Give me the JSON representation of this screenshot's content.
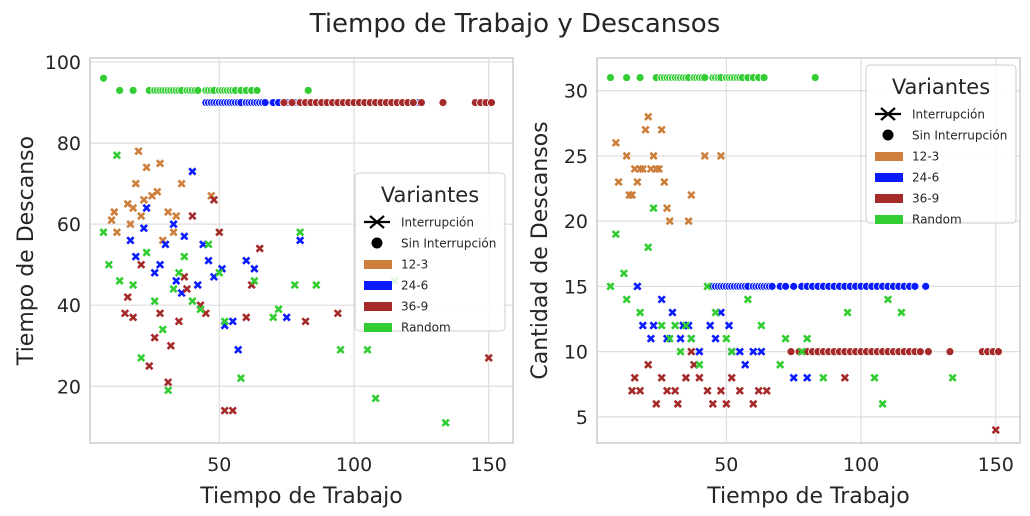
{
  "figure": {
    "suptitle": "Tiempo de Trabajo y Descansos"
  },
  "colors": {
    "12-3": "#cd7f3b",
    "24-6": "#0a1cff",
    "36-9": "#a52a2a",
    "Random": "#32cd32",
    "grid": "#dddddd",
    "spine": "#cccccc"
  },
  "chart_data": [
    {
      "type": "scatter",
      "title": "",
      "xlabel": "Tiempo de Trabajo",
      "ylabel": "Tiempo de Descanso",
      "xlim": [
        2,
        159
      ],
      "ylim": [
        6,
        101
      ],
      "xticks": [
        50,
        100,
        150
      ],
      "yticks": [
        20,
        40,
        60,
        80,
        100
      ],
      "grid": true,
      "legend": {
        "title": "Variantes",
        "placement": "center-right",
        "entries": [
          {
            "label": "Interrupción",
            "kind": "marker",
            "marker": "x"
          },
          {
            "label": "Sin Interrupción",
            "kind": "marker",
            "marker": "o"
          },
          {
            "label": "12-3",
            "kind": "patch",
            "series": "12-3"
          },
          {
            "label": "24-6",
            "kind": "patch",
            "series": "24-6"
          },
          {
            "label": "36-9",
            "kind": "patch",
            "series": "36-9"
          },
          {
            "label": "Random",
            "kind": "patch",
            "series": "Random"
          }
        ]
      },
      "series": [
        {
          "name": "12-3",
          "marker": "x",
          "x": [
            10,
            11,
            12,
            16,
            17,
            18,
            19,
            20,
            21,
            22,
            23,
            25,
            27,
            28,
            29,
            31,
            33,
            34,
            36,
            47
          ],
          "y": [
            61,
            63,
            58,
            65,
            60,
            64,
            70,
            78,
            62,
            66,
            74,
            67,
            68,
            75,
            56,
            63,
            58,
            62,
            70,
            67
          ]
        },
        {
          "name": "12-3",
          "marker": "o",
          "x": [],
          "y": []
        },
        {
          "name": "24-6",
          "marker": "x",
          "x": [
            17,
            19,
            22,
            23,
            26,
            28,
            30,
            33,
            34,
            36,
            37,
            40,
            42,
            44,
            46,
            48,
            51,
            52,
            55,
            57,
            60,
            63,
            75,
            80
          ],
          "y": [
            56,
            52,
            59,
            64,
            48,
            50,
            55,
            60,
            46,
            43,
            57,
            73,
            45,
            55,
            51,
            47,
            49,
            35,
            36,
            29,
            51,
            49,
            37,
            56
          ]
        },
        {
          "name": "24-6",
          "marker": "o",
          "x": [
            45,
            46,
            47,
            48,
            49,
            50,
            51,
            52,
            53,
            54,
            55,
            56,
            57,
            58,
            60,
            61,
            62,
            63,
            64,
            65,
            66,
            67,
            70,
            72,
            75,
            78,
            80,
            82,
            84,
            86,
            88,
            90,
            92,
            94,
            96,
            98,
            100,
            102,
            104,
            106,
            108,
            110,
            112,
            114,
            116,
            118,
            120,
            124
          ],
          "y": [
            90,
            90,
            90,
            90,
            90,
            90,
            90,
            90,
            90,
            90,
            90,
            90,
            90,
            90,
            90,
            90,
            90,
            90,
            90,
            90,
            90,
            90,
            90,
            90,
            90,
            90,
            90,
            90,
            90,
            90,
            90,
            90,
            90,
            90,
            90,
            90,
            90,
            90,
            90,
            90,
            90,
            90,
            90,
            90,
            90,
            90,
            90,
            90
          ]
        },
        {
          "name": "36-9",
          "marker": "x",
          "x": [
            15,
            16,
            18,
            21,
            24,
            26,
            28,
            31,
            32,
            35,
            37,
            38,
            40,
            43,
            45,
            48,
            50,
            52,
            55,
            60,
            62,
            65,
            82,
            94,
            150
          ],
          "y": [
            38,
            42,
            37,
            50,
            25,
            32,
            38,
            21,
            30,
            36,
            47,
            44,
            62,
            40,
            38,
            66,
            58,
            14,
            14,
            37,
            45,
            54,
            36,
            38,
            27
          ]
        },
        {
          "name": "36-9",
          "marker": "o",
          "x": [
            74,
            77,
            80,
            82,
            84,
            86,
            88,
            90,
            92,
            94,
            96,
            98,
            100,
            102,
            104,
            106,
            108,
            110,
            112,
            114,
            116,
            118,
            120,
            122,
            125,
            133,
            145,
            147,
            149,
            151
          ],
          "y": [
            90,
            90,
            90,
            90,
            90,
            90,
            90,
            90,
            90,
            90,
            90,
            90,
            90,
            90,
            90,
            90,
            90,
            90,
            90,
            90,
            90,
            90,
            90,
            90,
            90,
            90,
            90,
            90,
            90,
            90
          ]
        },
        {
          "name": "Random",
          "marker": "x",
          "x": [
            7,
            9,
            12,
            13,
            18,
            21,
            23,
            26,
            29,
            31,
            33,
            35,
            37,
            40,
            43,
            46,
            50,
            52,
            58,
            63,
            70,
            72,
            78,
            80,
            86,
            95,
            105,
            108,
            110,
            115,
            134
          ],
          "y": [
            58,
            50,
            77,
            46,
            45,
            27,
            53,
            41,
            34,
            19,
            44,
            48,
            52,
            41,
            39,
            55,
            48,
            36,
            22,
            46,
            37,
            39,
            45,
            58,
            45,
            29,
            29,
            17,
            40,
            46,
            11
          ]
        },
        {
          "name": "Random",
          "marker": "o",
          "x": [
            7,
            13,
            18,
            24,
            26,
            27,
            28,
            29,
            30,
            31,
            32,
            33,
            34,
            35,
            36,
            38,
            39,
            40,
            41,
            42,
            45,
            46,
            47,
            48,
            50,
            51,
            52,
            53,
            54,
            55,
            56,
            58,
            60,
            62,
            64,
            83
          ],
          "y": [
            96,
            93,
            93,
            93,
            93,
            93,
            93,
            93,
            93,
            93,
            93,
            93,
            93,
            93,
            93,
            93,
            93,
            93,
            93,
            93,
            93,
            93,
            93,
            93,
            93,
            93,
            93,
            93,
            93,
            93,
            93,
            93,
            93,
            93,
            93,
            93
          ]
        }
      ]
    },
    {
      "type": "scatter",
      "title": "",
      "xlabel": "Tiempo de Trabajo",
      "ylabel": "Cantidad de Descansos",
      "xlim": [
        2,
        159
      ],
      "ylim": [
        3,
        32.5
      ],
      "xticks": [
        50,
        100,
        150
      ],
      "yticks": [
        5,
        10,
        15,
        20,
        25,
        30
      ],
      "grid": true,
      "legend": {
        "title": "Variantes",
        "placement": "top-right",
        "entries": [
          {
            "label": "Interrupción",
            "kind": "marker",
            "marker": "x"
          },
          {
            "label": "Sin Interrupción",
            "kind": "marker",
            "marker": "o"
          },
          {
            "label": "12-3",
            "kind": "patch",
            "series": "12-3"
          },
          {
            "label": "24-6",
            "kind": "patch",
            "series": "24-6"
          },
          {
            "label": "36-9",
            "kind": "patch",
            "series": "36-9"
          },
          {
            "label": "Random",
            "kind": "patch",
            "series": "Random"
          }
        ]
      },
      "series": [
        {
          "name": "12-3",
          "marker": "x",
          "x": [
            9,
            10,
            13,
            14,
            15,
            16,
            17,
            18,
            19,
            20,
            21,
            22,
            23,
            24,
            25,
            26,
            27,
            28,
            29,
            36,
            37,
            42,
            48
          ],
          "y": [
            26,
            23,
            25,
            22,
            22,
            24,
            23,
            24,
            24,
            27,
            28,
            24,
            25,
            24,
            24,
            27,
            23,
            21,
            20,
            20,
            22,
            25,
            25
          ]
        },
        {
          "name": "24-6",
          "marker": "x",
          "x": [
            17,
            19,
            22,
            23,
            26,
            28,
            30,
            33,
            34,
            36,
            37,
            40,
            44,
            46,
            48,
            51,
            52,
            55,
            57,
            60,
            63,
            75,
            80
          ],
          "y": [
            15,
            12,
            11,
            12,
            14,
            11,
            13,
            11,
            12,
            12,
            11,
            10,
            12,
            11,
            13,
            12,
            10,
            10,
            9,
            10,
            10,
            8,
            8
          ]
        },
        {
          "name": "24-6",
          "marker": "o",
          "x": [
            45,
            46,
            47,
            48,
            49,
            50,
            51,
            52,
            53,
            54,
            55,
            56,
            57,
            58,
            60,
            61,
            62,
            63,
            64,
            65,
            66,
            67,
            70,
            72,
            75,
            78,
            80,
            82,
            84,
            86,
            88,
            90,
            92,
            94,
            96,
            98,
            100,
            102,
            104,
            106,
            108,
            110,
            112,
            114,
            116,
            118,
            120,
            124
          ],
          "y": [
            15,
            15,
            15,
            15,
            15,
            15,
            15,
            15,
            15,
            15,
            15,
            15,
            15,
            15,
            15,
            15,
            15,
            15,
            15,
            15,
            15,
            15,
            15,
            15,
            15,
            15,
            15,
            15,
            15,
            15,
            15,
            15,
            15,
            15,
            15,
            15,
            15,
            15,
            15,
            15,
            15,
            15,
            15,
            15,
            15,
            15,
            15,
            15
          ]
        },
        {
          "name": "36-9",
          "marker": "x",
          "x": [
            15,
            16,
            18,
            21,
            24,
            26,
            28,
            31,
            32,
            35,
            37,
            38,
            40,
            43,
            45,
            48,
            50,
            52,
            55,
            60,
            62,
            65,
            82,
            94,
            150
          ],
          "y": [
            7,
            8,
            7,
            9,
            6,
            8,
            7,
            7,
            6,
            8,
            10,
            9,
            8,
            7,
            6,
            7,
            6,
            8,
            7,
            6,
            7,
            7,
            10,
            8,
            4
          ]
        },
        {
          "name": "36-9",
          "marker": "o",
          "x": [
            74,
            77,
            80,
            82,
            84,
            86,
            88,
            90,
            92,
            94,
            96,
            98,
            100,
            102,
            104,
            106,
            108,
            110,
            112,
            114,
            116,
            118,
            120,
            122,
            125,
            133,
            145,
            147,
            149,
            151
          ],
          "y": [
            10,
            10,
            10,
            10,
            10,
            10,
            10,
            10,
            10,
            10,
            10,
            10,
            10,
            10,
            10,
            10,
            10,
            10,
            10,
            10,
            10,
            10,
            10,
            10,
            10,
            10,
            10,
            10,
            10,
            10
          ]
        },
        {
          "name": "Random",
          "marker": "x",
          "x": [
            7,
            9,
            12,
            13,
            18,
            21,
            23,
            26,
            29,
            31,
            33,
            35,
            37,
            40,
            43,
            46,
            50,
            52,
            58,
            63,
            70,
            72,
            78,
            80,
            86,
            95,
            105,
            108,
            110,
            115,
            134
          ],
          "y": [
            15,
            19,
            16,
            14,
            13,
            18,
            21,
            12,
            11,
            12,
            10,
            12,
            11,
            9,
            15,
            13,
            11,
            10,
            14,
            12,
            9,
            11,
            10,
            11,
            8,
            13,
            8,
            6,
            14,
            13,
            8
          ]
        },
        {
          "name": "Random",
          "marker": "o",
          "x": [
            7,
            13,
            18,
            24,
            26,
            27,
            28,
            29,
            30,
            31,
            32,
            33,
            34,
            35,
            36,
            38,
            39,
            40,
            41,
            42,
            45,
            46,
            47,
            48,
            50,
            51,
            52,
            53,
            54,
            55,
            56,
            58,
            60,
            62,
            64,
            83
          ],
          "y": [
            31,
            31,
            31,
            31,
            31,
            31,
            31,
            31,
            31,
            31,
            31,
            31,
            31,
            31,
            31,
            31,
            31,
            31,
            31,
            31,
            31,
            31,
            31,
            31,
            31,
            31,
            31,
            31,
            31,
            31,
            31,
            31,
            31,
            31,
            31,
            31
          ]
        }
      ]
    }
  ]
}
